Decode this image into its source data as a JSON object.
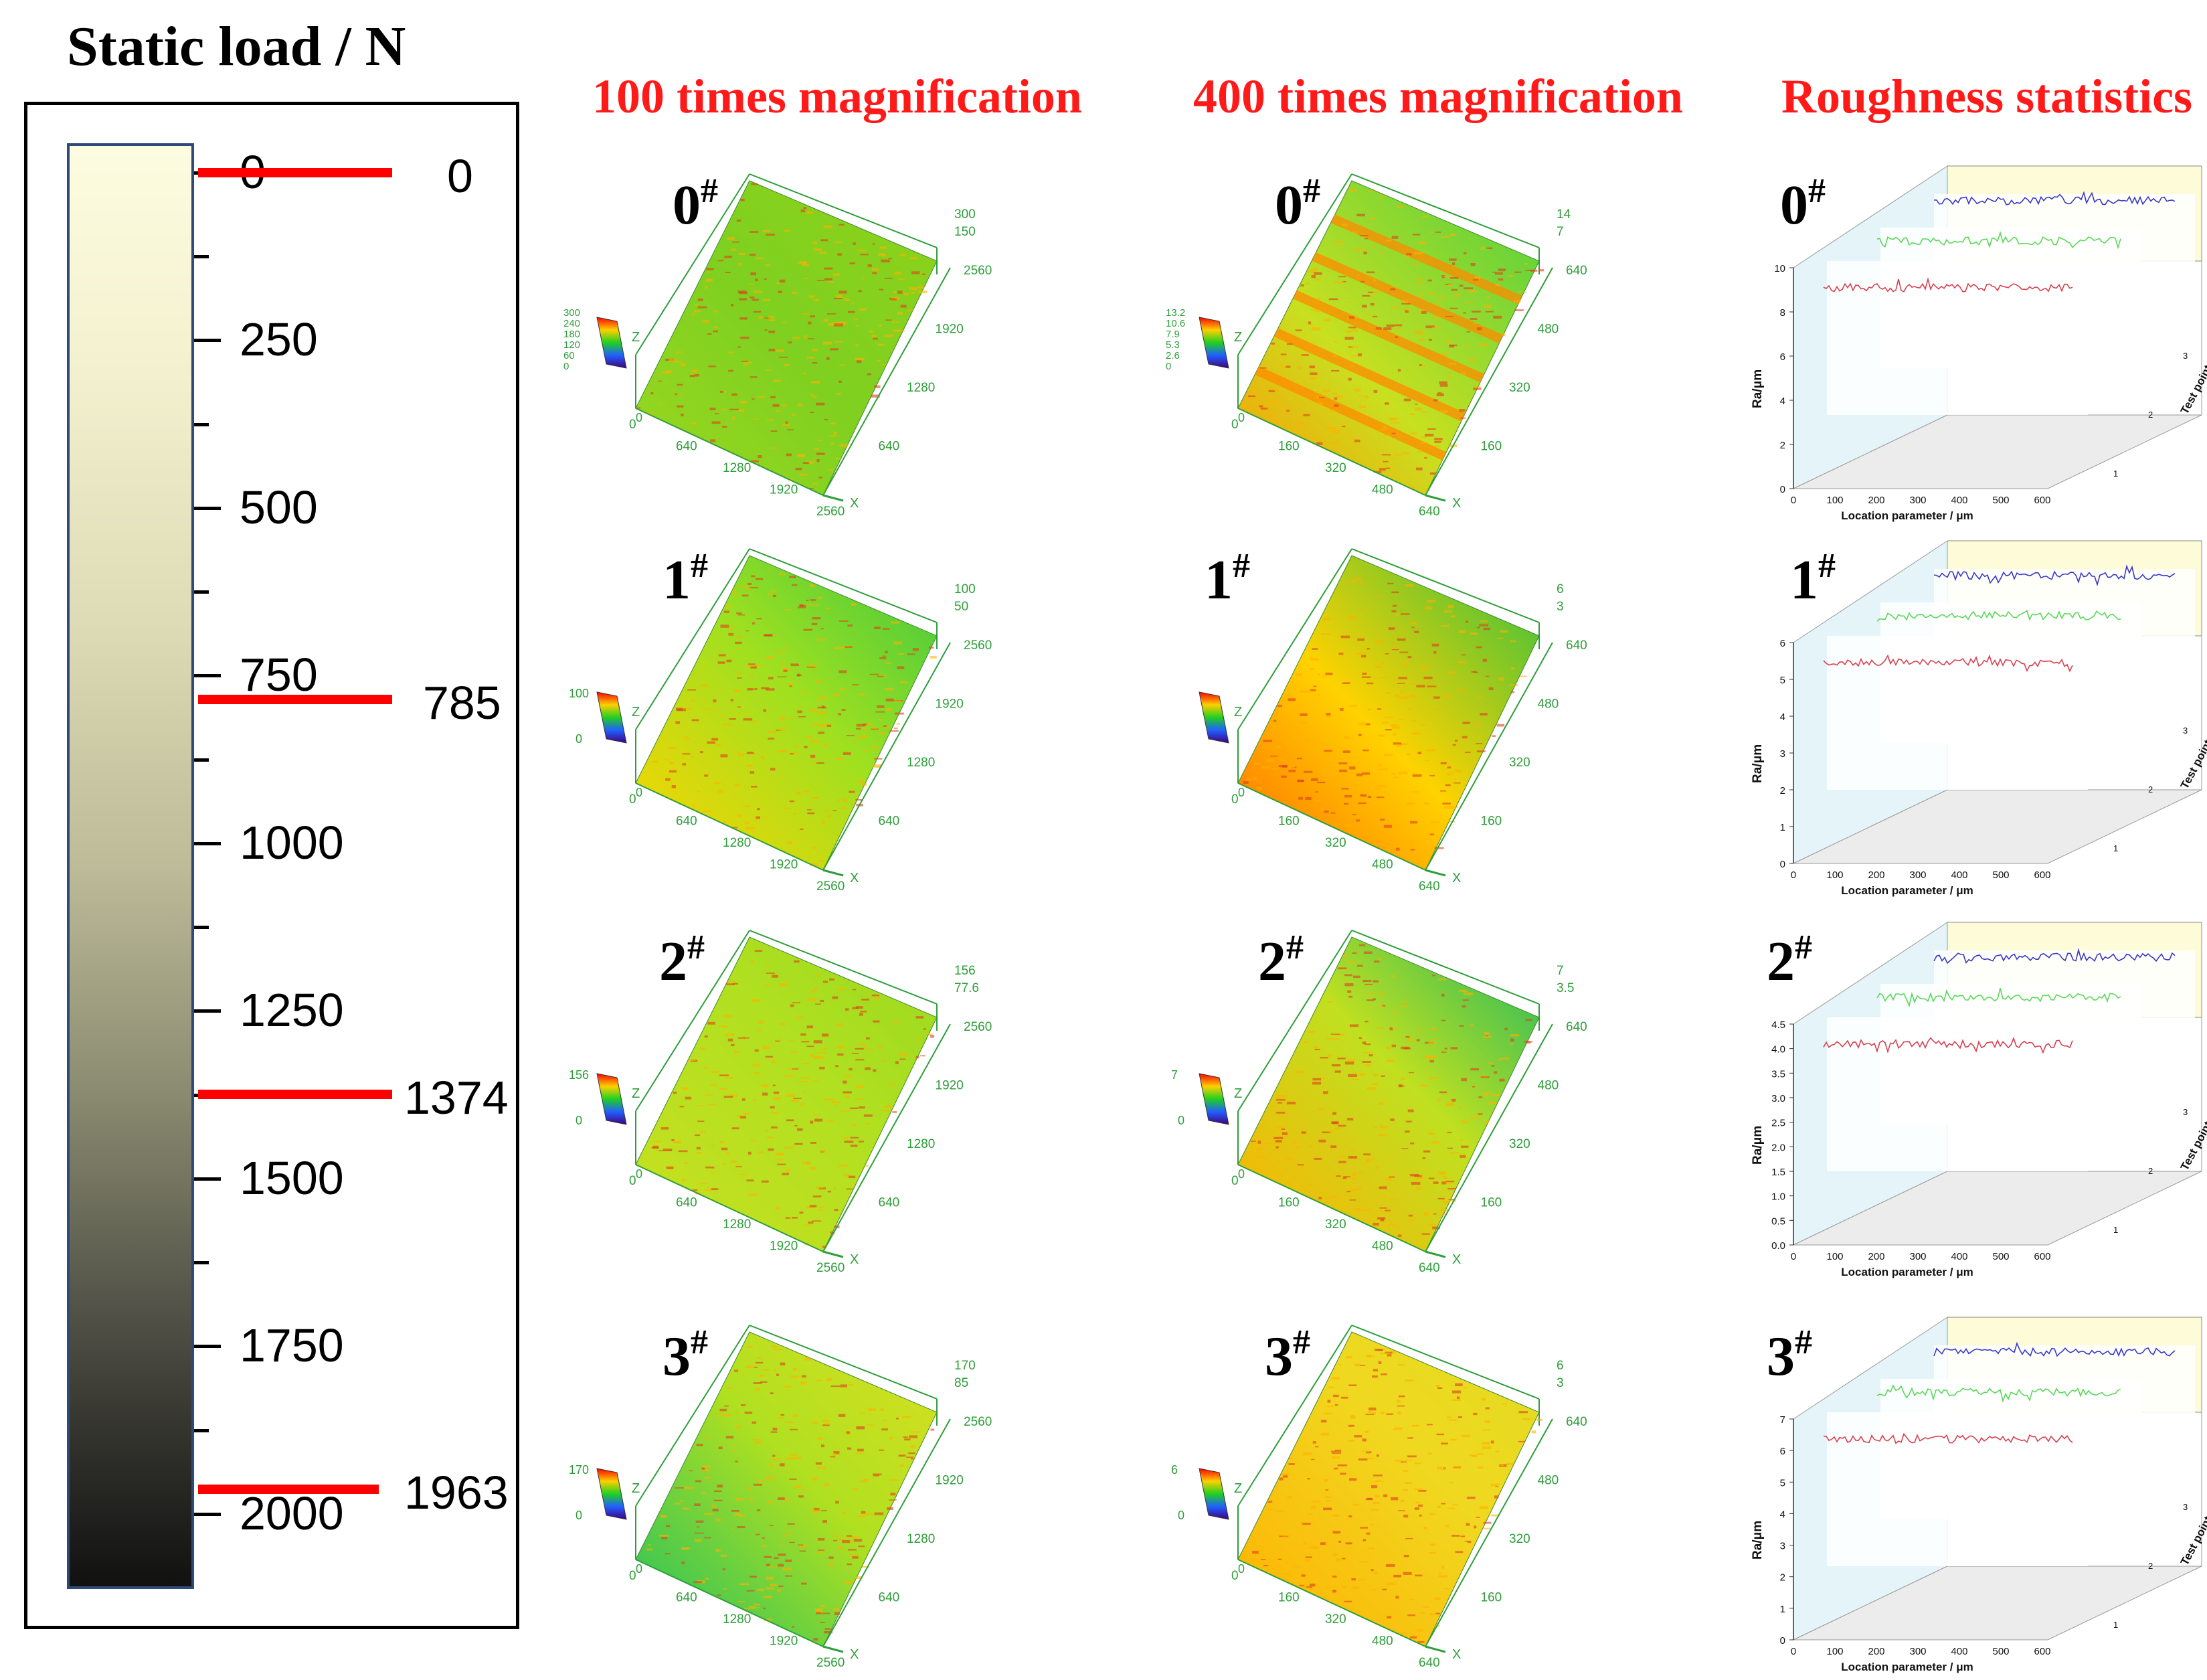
{
  "colorbar": {
    "title": "Static load / N",
    "tick_labels": [
      "0",
      "250",
      "500",
      "750",
      "1000",
      "1250",
      "1500",
      "1750",
      "2000"
    ],
    "markers": [
      "0",
      "785",
      "1374",
      "1963"
    ],
    "marker_values": [
      0,
      785,
      1374,
      1963
    ],
    "range": [
      0,
      2060
    ]
  },
  "columns": {
    "mag100": "100 times magnification",
    "mag400": "400 times magnification",
    "rough": "Roughness statistics"
  },
  "samples": [
    {
      "num": "0",
      "sup": "#",
      "m100": {
        "zmax": "300",
        "zmid": "150",
        "ylab": [
          "2560",
          "1920",
          "1280",
          "640"
        ],
        "xlab": [
          "0",
          "640",
          "1280",
          "1920",
          "2560"
        ],
        "legend": [
          "300",
          "240",
          "180",
          "120",
          "60",
          "0"
        ],
        "axis_x": "X",
        "axis_z": "Z"
      },
      "m400": {
        "zmax": "14",
        "zmid": "7",
        "ylab": [
          "640",
          "480",
          "320",
          "160"
        ],
        "xlab": [
          "0",
          "160",
          "320",
          "480",
          "640"
        ],
        "legend": [
          "13.2",
          "10.6",
          "7.9",
          "5.3",
          "2.6",
          "0"
        ],
        "axis_x": "X",
        "axis_z": "Z"
      },
      "rough": {
        "yticks": [
          "0",
          "2",
          "4",
          "6",
          "8",
          "10"
        ],
        "ymax": 10
      }
    },
    {
      "num": "1",
      "sup": "#",
      "m100": {
        "zmax": "100",
        "zmid": "50",
        "ylab": [
          "2560",
          "1920",
          "1280",
          "640"
        ],
        "xlab": [
          "0",
          "640",
          "1280",
          "1920",
          "2560"
        ],
        "legend": [
          "100",
          "0"
        ],
        "axis_x": "X",
        "axis_z": "Z"
      },
      "m400": {
        "zmax": "6",
        "zmid": "3",
        "ylab": [
          "640",
          "480",
          "320",
          "160"
        ],
        "xlab": [
          "0",
          "160",
          "320",
          "480",
          "640"
        ],
        "legend": [],
        "axis_x": "X",
        "axis_z": "Z"
      },
      "rough": {
        "yticks": [
          "0",
          "1",
          "2",
          "3",
          "4",
          "5",
          "6"
        ],
        "ymax": 6
      }
    },
    {
      "num": "2",
      "sup": "#",
      "m100": {
        "zmax": "156",
        "zmid": "77.6",
        "ylab": [
          "2560",
          "1920",
          "1280",
          "640"
        ],
        "xlab": [
          "0",
          "640",
          "1280",
          "1920",
          "2560"
        ],
        "legend": [
          "156",
          "0"
        ],
        "axis_x": "X",
        "axis_z": "Z"
      },
      "m400": {
        "zmax": "7",
        "zmid": "3.5",
        "ylab": [
          "640",
          "480",
          "320",
          "160"
        ],
        "xlab": [
          "0",
          "160",
          "320",
          "480",
          "640"
        ],
        "legend": [
          "7",
          "0"
        ],
        "axis_x": "X",
        "axis_z": "Z"
      },
      "rough": {
        "yticks": [
          "0.0",
          "0.5",
          "1.0",
          "1.5",
          "2.0",
          "2.5",
          "3.0",
          "3.5",
          "4.0",
          "4.5"
        ],
        "ymax": 4.5
      }
    },
    {
      "num": "3",
      "sup": "#",
      "m100": {
        "zmax": "170",
        "zmid": "85",
        "ylab": [
          "2560",
          "1920",
          "1280",
          "640"
        ],
        "xlab": [
          "0",
          "640",
          "1280",
          "1920",
          "2560"
        ],
        "legend": [
          "170",
          "0"
        ],
        "axis_x": "X",
        "axis_z": "Z"
      },
      "m400": {
        "zmax": "6",
        "zmid": "3",
        "ylab": [
          "640",
          "480",
          "320",
          "160"
        ],
        "xlab": [
          "0",
          "160",
          "320",
          "480",
          "640"
        ],
        "legend": [
          "6",
          "0"
        ],
        "axis_x": "X",
        "axis_z": "Z"
      },
      "rough": {
        "yticks": [
          "0",
          "1",
          "2",
          "3",
          "4",
          "5",
          "6",
          "7"
        ],
        "ymax": 7
      }
    }
  ],
  "rough_common": {
    "ylabel": "Ra/μm",
    "xlabel": "Location parameter / μm",
    "depth_label": "Test point",
    "xticks": [
      "0",
      "100",
      "200",
      "300",
      "400",
      "500",
      "600"
    ],
    "depth_ticks": [
      "1",
      "2",
      "3"
    ]
  },
  "colors": {
    "title_red": "#ff1a1a",
    "marker_red": "#ff0000",
    "axis_green": "#2e9e3a",
    "series": [
      "#d84050",
      "#58d858",
      "#3838c8"
    ]
  }
}
